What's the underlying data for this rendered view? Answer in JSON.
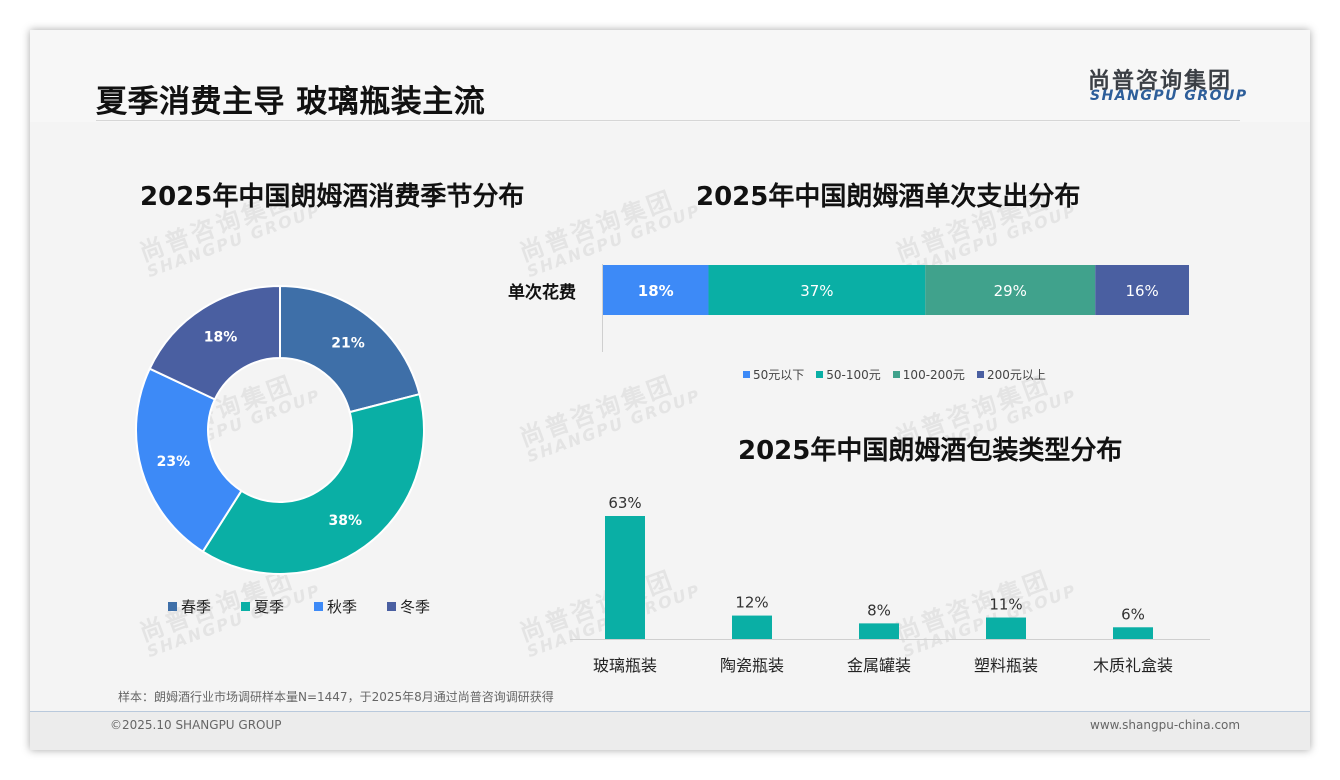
{
  "page": {
    "title": "夏季消费主导 玻璃瓶装主流",
    "logo_cn": "尚普咨询集团",
    "logo_en": "SHANGPU GROUP",
    "watermark_cn": "尚普咨询集团",
    "watermark_en": "SHANGPU GROUP",
    "footnote": "样本：朗姆酒行业市场调研样本量N=1447，于2025年8月通过尚普咨询调研获得",
    "copyright": "©2025.10 SHANGPU GROUP",
    "website": "www.shangpu-china.com"
  },
  "chart_data": [
    {
      "type": "pie",
      "title": "2025年中国朗姆酒消费季节分布",
      "categories": [
        "春季",
        "夏季",
        "秋季",
        "冬季"
      ],
      "values": [
        21,
        38,
        23,
        18
      ],
      "labels": [
        "21%",
        "38%",
        "23%",
        "18%"
      ],
      "colors": [
        "#3e6fa8",
        "#0aafa5",
        "#3d8af7",
        "#4a5fa1"
      ],
      "donut": true,
      "legend": "bottom"
    },
    {
      "type": "bar",
      "stacked": true,
      "orientation": "horizontal",
      "title": "2025年中国朗姆酒单次支出分布",
      "categories": [
        "单次花费"
      ],
      "series": [
        {
          "name": "50元以下",
          "values": [
            18
          ],
          "label": "18%",
          "color": "#3d8af7"
        },
        {
          "name": "50-100元",
          "values": [
            37
          ],
          "label": "37%",
          "color": "#0aafa5"
        },
        {
          "name": "100-200元",
          "values": [
            29
          ],
          "label": "29%",
          "color": "#40a28c"
        },
        {
          "name": "200元以上",
          "values": [
            16
          ],
          "label": "16%",
          "color": "#4a5fa1"
        }
      ],
      "legend": "bottom"
    },
    {
      "type": "bar",
      "title": "2025年中国朗姆酒包装类型分布",
      "categories": [
        "玻璃瓶装",
        "陶瓷瓶装",
        "金属罐装",
        "塑料瓶装",
        "木质礼盒装"
      ],
      "values": [
        63,
        12,
        8,
        11,
        6
      ],
      "labels": [
        "63%",
        "12%",
        "8%",
        "11%",
        "6%"
      ],
      "color": "#0aafa5",
      "ylim": [
        0,
        63
      ]
    }
  ]
}
